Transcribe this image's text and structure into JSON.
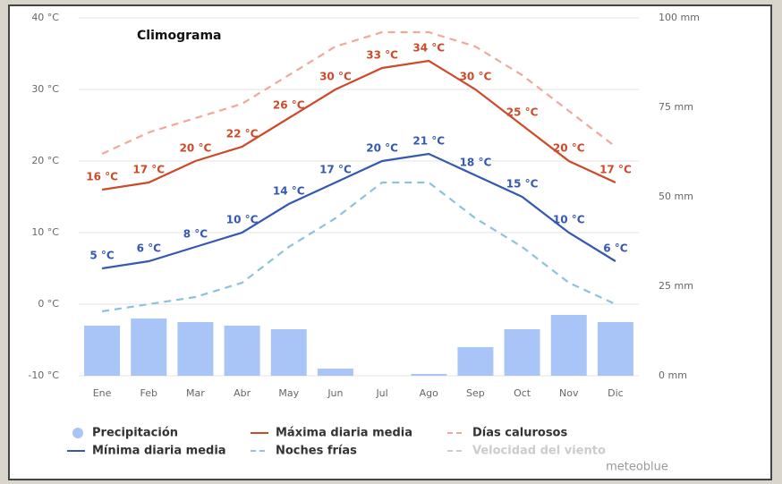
{
  "chart_data": {
    "type": "climogram",
    "title": "Climograma",
    "credit": "meteoblue",
    "categories": [
      "Ene",
      "Feb",
      "Mar",
      "Abr",
      "May",
      "Jun",
      "Jul",
      "Ago",
      "Sep",
      "Oct",
      "Nov",
      "Dic"
    ],
    "ylim": [
      -10,
      40
    ],
    "yticks": [
      {
        "value": -10,
        "label": "-10 °C"
      },
      {
        "value": 0,
        "label": "0 °C"
      },
      {
        "value": 10,
        "label": "10 °C"
      },
      {
        "value": 20,
        "label": "20 °C"
      },
      {
        "value": 30,
        "label": "30 °C"
      },
      {
        "value": 40,
        "label": "40 °C"
      }
    ],
    "y2lim": [
      0,
      100
    ],
    "y2ticks": [
      {
        "value": 0,
        "label": "0 mm"
      },
      {
        "value": 25,
        "label": "25 mm"
      },
      {
        "value": 50,
        "label": "50 mm"
      },
      {
        "value": 75,
        "label": "75 mm"
      },
      {
        "value": 100,
        "label": "100 mm"
      }
    ],
    "grid": true,
    "series": [
      {
        "name": "Precipitación",
        "color": "#a9c5f7",
        "style": "bar",
        "axis": "y2",
        "values": [
          14,
          16,
          15,
          14,
          13,
          2,
          0,
          0.5,
          8,
          13,
          17,
          15
        ]
      },
      {
        "name": "Máxima diaria media",
        "color": "#cc4a2a",
        "style": "line",
        "values": [
          16,
          17,
          20,
          22,
          26,
          30,
          33,
          34,
          30,
          25,
          20,
          17
        ],
        "value_labels": [
          "16 °C",
          "17 °C",
          "20 °C",
          "22 °C",
          "26 °C",
          "30 °C",
          "33 °C",
          "34 °C",
          "30 °C",
          "25 °C",
          "20 °C",
          "17 °C"
        ]
      },
      {
        "name": "Días calurosos",
        "color": "#f0a899",
        "style": "dashed",
        "values": [
          21,
          24,
          26,
          28,
          32,
          36,
          38,
          38,
          36,
          32,
          27,
          22
        ]
      },
      {
        "name": "Mínima diaria media",
        "color": "#3558b0",
        "style": "line",
        "values": [
          5,
          6,
          8,
          10,
          14,
          17,
          20,
          21,
          18,
          15,
          10,
          6
        ],
        "value_labels": [
          "5 °C",
          "6 °C",
          "8 °C",
          "10 °C",
          "14 °C",
          "17 °C",
          "20 °C",
          "21 °C",
          "18 °C",
          "15 °C",
          "10 °C",
          "6 °C"
        ]
      },
      {
        "name": "Noches frías",
        "color": "#8cc2de",
        "style": "dashed",
        "values": [
          -1,
          0,
          1,
          3,
          8,
          12,
          17,
          17,
          12,
          8,
          3,
          0
        ]
      }
    ],
    "inactive_series": [
      {
        "name": "Velocidad del viento",
        "color": "#cccccc",
        "style": "dashed"
      }
    ]
  }
}
